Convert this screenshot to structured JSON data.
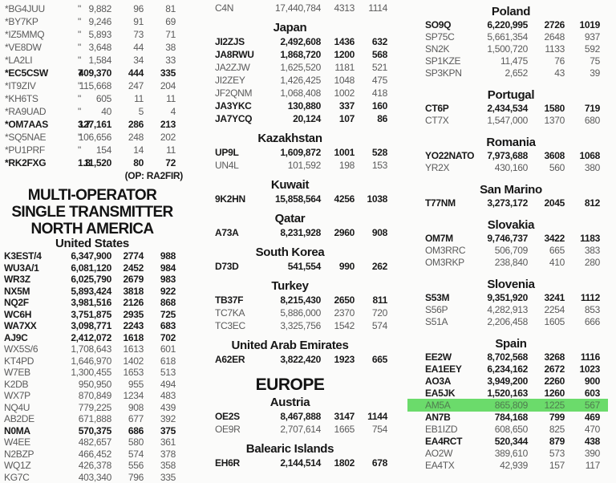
{
  "meta": {
    "highlight_color": "#6BDB6B",
    "highlighted_call": "AM5A"
  },
  "columns": [
    {
      "name": "left",
      "blocks": [
        {
          "type": "rows",
          "rows": [
            {
              "call": "*BG4JUU",
              "band": "\"",
              "score": "9,882",
              "qso": "96",
              "mult": "81",
              "bold": false
            },
            {
              "call": "*BY7KP",
              "band": "\"",
              "score": "9,246",
              "qso": "91",
              "mult": "69",
              "bold": false
            },
            {
              "call": "*IZ5MMQ",
              "band": "\"",
              "score": "5,893",
              "qso": "73",
              "mult": "71",
              "bold": false
            },
            {
              "call": "*VE8DW",
              "band": "\"",
              "score": "3,648",
              "qso": "44",
              "mult": "38",
              "bold": false
            },
            {
              "call": "*LA2LI",
              "band": "\"",
              "score": "1,584",
              "qso": "34",
              "mult": "33",
              "bold": false
            },
            {
              "call": "*EC5CSW",
              "band": "7",
              "score": "409,370",
              "qso": "444",
              "mult": "335",
              "bold": true
            },
            {
              "call": "*IT9ZIV",
              "band": "\"",
              "score": "115,668",
              "qso": "247",
              "mult": "204",
              "bold": false
            },
            {
              "call": "*KH6TS",
              "band": "\"",
              "score": "605",
              "qso": "11",
              "mult": "11",
              "bold": false
            },
            {
              "call": "*RA9UAD",
              "band": "\"",
              "score": "40",
              "qso": "5",
              "mult": "4",
              "bold": false
            },
            {
              "call": "*OM7AAS",
              "band": "3.7",
              "score": "127,161",
              "qso": "286",
              "mult": "213",
              "bold": true
            },
            {
              "call": "*SQ5NAE",
              "band": "\"",
              "score": "106,656",
              "qso": "248",
              "mult": "202",
              "bold": false
            },
            {
              "call": "*PU1PRF",
              "band": "\"",
              "score": "154",
              "qso": "14",
              "mult": "11",
              "bold": false
            },
            {
              "call": "*RK2FXG",
              "band": "1.8",
              "score": "11,520",
              "qso": "80",
              "mult": "72",
              "bold": true
            }
          ]
        },
        {
          "type": "note",
          "text": "(OP: RA2FIR)"
        },
        {
          "type": "title",
          "lines": [
            "MULTI-OPERATOR",
            "SINGLE TRANSMITTER",
            "NORTH AMERICA"
          ]
        },
        {
          "type": "country",
          "text": "United States"
        },
        {
          "type": "rows",
          "rows": [
            {
              "call": "K3EST/4",
              "score": "6,347,900",
              "qso": "2774",
              "mult": "988",
              "bold": true
            },
            {
              "call": "WU3A/1",
              "score": "6,081,120",
              "qso": "2452",
              "mult": "984",
              "bold": true
            },
            {
              "call": "WR3Z",
              "score": "6,025,790",
              "qso": "2679",
              "mult": "983",
              "bold": true
            },
            {
              "call": "NX5M",
              "score": "5,893,424",
              "qso": "3818",
              "mult": "922",
              "bold": true
            },
            {
              "call": "NQ2F",
              "score": "3,981,516",
              "qso": "2126",
              "mult": "868",
              "bold": true
            },
            {
              "call": "WC6H",
              "score": "3,751,875",
              "qso": "2935",
              "mult": "725",
              "bold": true
            },
            {
              "call": "WA7XX",
              "score": "3,098,771",
              "qso": "2243",
              "mult": "683",
              "bold": true
            },
            {
              "call": "AJ9C",
              "score": "2,412,072",
              "qso": "1618",
              "mult": "702",
              "bold": true
            },
            {
              "call": "WX5S/6",
              "score": "1,708,643",
              "qso": "1613",
              "mult": "601",
              "bold": false
            },
            {
              "call": "KT4PD",
              "score": "1,646,970",
              "qso": "1402",
              "mult": "618",
              "bold": false
            },
            {
              "call": "W7EB",
              "score": "1,300,455",
              "qso": "1653",
              "mult": "513",
              "bold": false
            },
            {
              "call": "K2DB",
              "score": "950,950",
              "qso": "955",
              "mult": "494",
              "bold": false
            },
            {
              "call": "WX7P",
              "score": "870,849",
              "qso": "1234",
              "mult": "483",
              "bold": false
            },
            {
              "call": "NQ4U",
              "score": "779,225",
              "qso": "908",
              "mult": "439",
              "bold": false
            },
            {
              "call": "AB2DE",
              "score": "671,888",
              "qso": "677",
              "mult": "392",
              "bold": false
            },
            {
              "call": "N0MA",
              "score": "570,375",
              "qso": "686",
              "mult": "375",
              "bold": true
            },
            {
              "call": "W4EE",
              "score": "482,657",
              "qso": "580",
              "mult": "361",
              "bold": false
            },
            {
              "call": "N2BZP",
              "score": "466,452",
              "qso": "574",
              "mult": "378",
              "bold": false
            },
            {
              "call": "WQ1Z",
              "score": "426,378",
              "qso": "556",
              "mult": "358",
              "bold": false
            },
            {
              "call": "KG7C",
              "score": "403,340",
              "qso": "796",
              "mult": "335",
              "bold": false
            }
          ]
        }
      ]
    },
    {
      "name": "middle",
      "blocks": [
        {
          "type": "rows",
          "rows": [
            {
              "call": "C4N",
              "score": "17,440,784",
              "qso": "4313",
              "mult": "1114",
              "bold": false
            }
          ]
        },
        {
          "type": "country",
          "text": "Japan"
        },
        {
          "type": "rows",
          "rows": [
            {
              "call": "JI2ZJS",
              "score": "2,492,608",
              "qso": "1436",
              "mult": "632",
              "bold": true
            },
            {
              "call": "JA8RWU",
              "score": "1,868,720",
              "qso": "1200",
              "mult": "568",
              "bold": true
            },
            {
              "call": "JA2ZJW",
              "score": "1,625,520",
              "qso": "1181",
              "mult": "521",
              "bold": false
            },
            {
              "call": "JI2ZEY",
              "score": "1,426,425",
              "qso": "1048",
              "mult": "475",
              "bold": false
            },
            {
              "call": "JF2QNM",
              "score": "1,068,408",
              "qso": "1002",
              "mult": "418",
              "bold": false
            },
            {
              "call": "JA3YKC",
              "score": "130,880",
              "qso": "337",
              "mult": "160",
              "bold": true
            },
            {
              "call": "JA7YCQ",
              "score": "20,124",
              "qso": "107",
              "mult": "86",
              "bold": true
            }
          ]
        },
        {
          "type": "country",
          "text": "Kazakhstan"
        },
        {
          "type": "rows",
          "rows": [
            {
              "call": "UP9L",
              "score": "1,609,872",
              "qso": "1001",
              "mult": "528",
              "bold": true
            },
            {
              "call": "UN4L",
              "score": "101,592",
              "qso": "198",
              "mult": "153",
              "bold": false
            }
          ]
        },
        {
          "type": "country",
          "text": "Kuwait"
        },
        {
          "type": "rows",
          "rows": [
            {
              "call": "9K2HN",
              "score": "15,858,564",
              "qso": "4256",
              "mult": "1038",
              "bold": true
            }
          ]
        },
        {
          "type": "country",
          "text": "Qatar"
        },
        {
          "type": "rows",
          "rows": [
            {
              "call": "A73A",
              "score": "8,231,928",
              "qso": "2960",
              "mult": "908",
              "bold": true
            }
          ]
        },
        {
          "type": "country",
          "text": "South Korea"
        },
        {
          "type": "rows",
          "rows": [
            {
              "call": "D73D",
              "score": "541,554",
              "qso": "990",
              "mult": "262",
              "bold": true
            }
          ]
        },
        {
          "type": "country",
          "text": "Turkey"
        },
        {
          "type": "rows",
          "rows": [
            {
              "call": "TB37F",
              "score": "8,215,430",
              "qso": "2650",
              "mult": "811",
              "bold": true
            },
            {
              "call": "TC7KA",
              "score": "5,886,000",
              "qso": "2370",
              "mult": "720",
              "bold": false
            },
            {
              "call": "TC3EC",
              "score": "3,325,756",
              "qso": "1542",
              "mult": "574",
              "bold": false
            }
          ]
        },
        {
          "type": "country",
          "text": "United Arab Emirates"
        },
        {
          "type": "rows",
          "rows": [
            {
              "call": "A62ER",
              "score": "3,822,420",
              "qso": "1923",
              "mult": "665",
              "bold": true
            }
          ]
        },
        {
          "type": "continent",
          "text": "EUROPE"
        },
        {
          "type": "country",
          "text": "Austria"
        },
        {
          "type": "rows",
          "rows": [
            {
              "call": "OE2S",
              "score": "8,467,888",
              "qso": "3147",
              "mult": "1144",
              "bold": true
            },
            {
              "call": "OE9R",
              "score": "2,707,614",
              "qso": "1665",
              "mult": "754",
              "bold": false
            }
          ]
        },
        {
          "type": "country",
          "text": "Balearic Islands"
        },
        {
          "type": "rows",
          "rows": [
            {
              "call": "EH6R",
              "score": "2,144,514",
              "qso": "1802",
              "mult": "678",
              "bold": true
            }
          ]
        }
      ]
    },
    {
      "name": "right",
      "blocks": [
        {
          "type": "country",
          "text": "Poland"
        },
        {
          "type": "rows",
          "rows": [
            {
              "call": "SO9Q",
              "score": "6,220,995",
              "qso": "2726",
              "mult": "1019",
              "bold": true
            },
            {
              "call": "SP75C",
              "score": "5,661,354",
              "qso": "2648",
              "mult": "937",
              "bold": false
            },
            {
              "call": "SN2K",
              "score": "1,500,720",
              "qso": "1133",
              "mult": "592",
              "bold": false
            },
            {
              "call": "SP1KZE",
              "score": "11,475",
              "qso": "76",
              "mult": "75",
              "bold": false
            },
            {
              "call": "SP3KPN",
              "score": "2,652",
              "qso": "43",
              "mult": "39",
              "bold": false
            }
          ]
        },
        {
          "type": "country",
          "text": "Portugal"
        },
        {
          "type": "rows",
          "rows": [
            {
              "call": "CT6P",
              "score": "2,434,534",
              "qso": "1580",
              "mult": "719",
              "bold": true
            },
            {
              "call": "CT7X",
              "score": "1,547,000",
              "qso": "1370",
              "mult": "680",
              "bold": false
            }
          ]
        },
        {
          "type": "country",
          "text": "Romania"
        },
        {
          "type": "rows",
          "rows": [
            {
              "call": "YO22NATO",
              "score": "7,973,688",
              "qso": "3608",
              "mult": "1068",
              "bold": true
            },
            {
              "call": "YR2X",
              "score": "430,160",
              "qso": "560",
              "mult": "380",
              "bold": false
            }
          ]
        },
        {
          "type": "country",
          "text": "San Marino"
        },
        {
          "type": "rows",
          "rows": [
            {
              "call": "T77NM",
              "score": "3,273,172",
              "qso": "2045",
              "mult": "812",
              "bold": true
            }
          ]
        },
        {
          "type": "country",
          "text": "Slovakia"
        },
        {
          "type": "rows",
          "rows": [
            {
              "call": "OM7M",
              "score": "9,746,737",
              "qso": "3422",
              "mult": "1183",
              "bold": true
            },
            {
              "call": "OM3RRC",
              "score": "506,709",
              "qso": "665",
              "mult": "383",
              "bold": false
            },
            {
              "call": "OM3RKP",
              "score": "238,840",
              "qso": "410",
              "mult": "280",
              "bold": false
            }
          ]
        },
        {
          "type": "country",
          "text": "Slovenia"
        },
        {
          "type": "rows",
          "rows": [
            {
              "call": "S53M",
              "score": "9,351,920",
              "qso": "3241",
              "mult": "1112",
              "bold": true
            },
            {
              "call": "S56P",
              "score": "4,282,913",
              "qso": "2254",
              "mult": "853",
              "bold": false
            },
            {
              "call": "S51A",
              "score": "2,206,458",
              "qso": "1605",
              "mult": "666",
              "bold": false
            }
          ]
        },
        {
          "type": "country",
          "text": "Spain"
        },
        {
          "type": "rows",
          "rows": [
            {
              "call": "EE2W",
              "score": "8,702,568",
              "qso": "3268",
              "mult": "1116",
              "bold": true
            },
            {
              "call": "EA1EEY",
              "score": "6,234,162",
              "qso": "2672",
              "mult": "1023",
              "bold": true
            },
            {
              "call": "AO3A",
              "score": "3,949,200",
              "qso": "2260",
              "mult": "900",
              "bold": true
            },
            {
              "call": "EA5JK",
              "score": "1,520,163",
              "qso": "1260",
              "mult": "603",
              "bold": true
            },
            {
              "call": "AM5A",
              "score": "865,809",
              "qso": "1225",
              "mult": "567",
              "bold": false,
              "hl": true
            },
            {
              "call": "AN7B",
              "score": "784,168",
              "qso": "799",
              "mult": "469",
              "bold": true
            },
            {
              "call": "EB1IZD",
              "score": "608,650",
              "qso": "825",
              "mult": "470",
              "bold": false
            },
            {
              "call": "EA4RCT",
              "score": "520,344",
              "qso": "879",
              "mult": "438",
              "bold": true
            },
            {
              "call": "AO2W",
              "score": "389,610",
              "qso": "573",
              "mult": "390",
              "bold": false
            },
            {
              "call": "EA4TX",
              "score": "42,939",
              "qso": "157",
              "mult": "117",
              "bold": false
            }
          ]
        }
      ]
    }
  ]
}
